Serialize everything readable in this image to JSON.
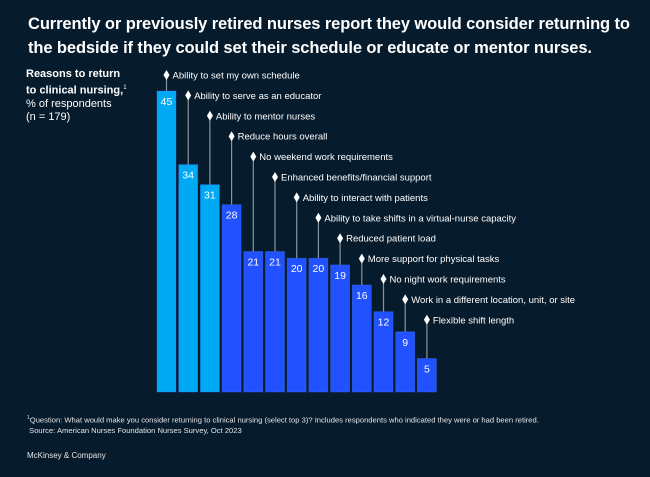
{
  "title": "Currently or previously retired nurses report they would consider returning to the bedside if they could set their schedule or educate or mentor nurses.",
  "subhead": {
    "line1": "Reasons to return",
    "line2": "to clinical nursing,",
    "footnote_marker": "1",
    "line3": "% of respondents",
    "line4": "(n = 179)"
  },
  "chart_data": {
    "type": "bar",
    "title": "Reasons to return to clinical nursing",
    "ylabel": "% of respondents",
    "ylim": [
      0,
      45
    ],
    "grid": false,
    "categories": [
      "Ability to set my own schedule",
      "Ability to serve as an educator",
      "Ability to mentor nurses",
      "Reduce hours overall",
      "No weekend work requirements",
      "Enhanced benefits/financial support",
      "Ability to interact with patients",
      "Ability to take shifts in a virtual-nurse capacity",
      "Reduced patient load",
      "More support for physical tasks",
      "No night work requirements",
      "Work in a different location, unit, or site",
      "Flexible shift length"
    ],
    "values": [
      45,
      34,
      31,
      28,
      21,
      21,
      20,
      20,
      19,
      16,
      12,
      9,
      5
    ],
    "highlight_count": 3,
    "colors": {
      "highlight": "#00a9f4",
      "default": "#2251ff",
      "background": "#061b2c",
      "leader": "#8a949c"
    }
  },
  "footnote": {
    "marker": "1",
    "question": "Question: What would make you consider returning to clinical nursing (select top 3)? Includes respondents who indicated they were or had been retired.",
    "source": "Source: American Nurses Foundation Nurses Survey, Oct 2023"
  },
  "brand": "McKinsey & Company"
}
